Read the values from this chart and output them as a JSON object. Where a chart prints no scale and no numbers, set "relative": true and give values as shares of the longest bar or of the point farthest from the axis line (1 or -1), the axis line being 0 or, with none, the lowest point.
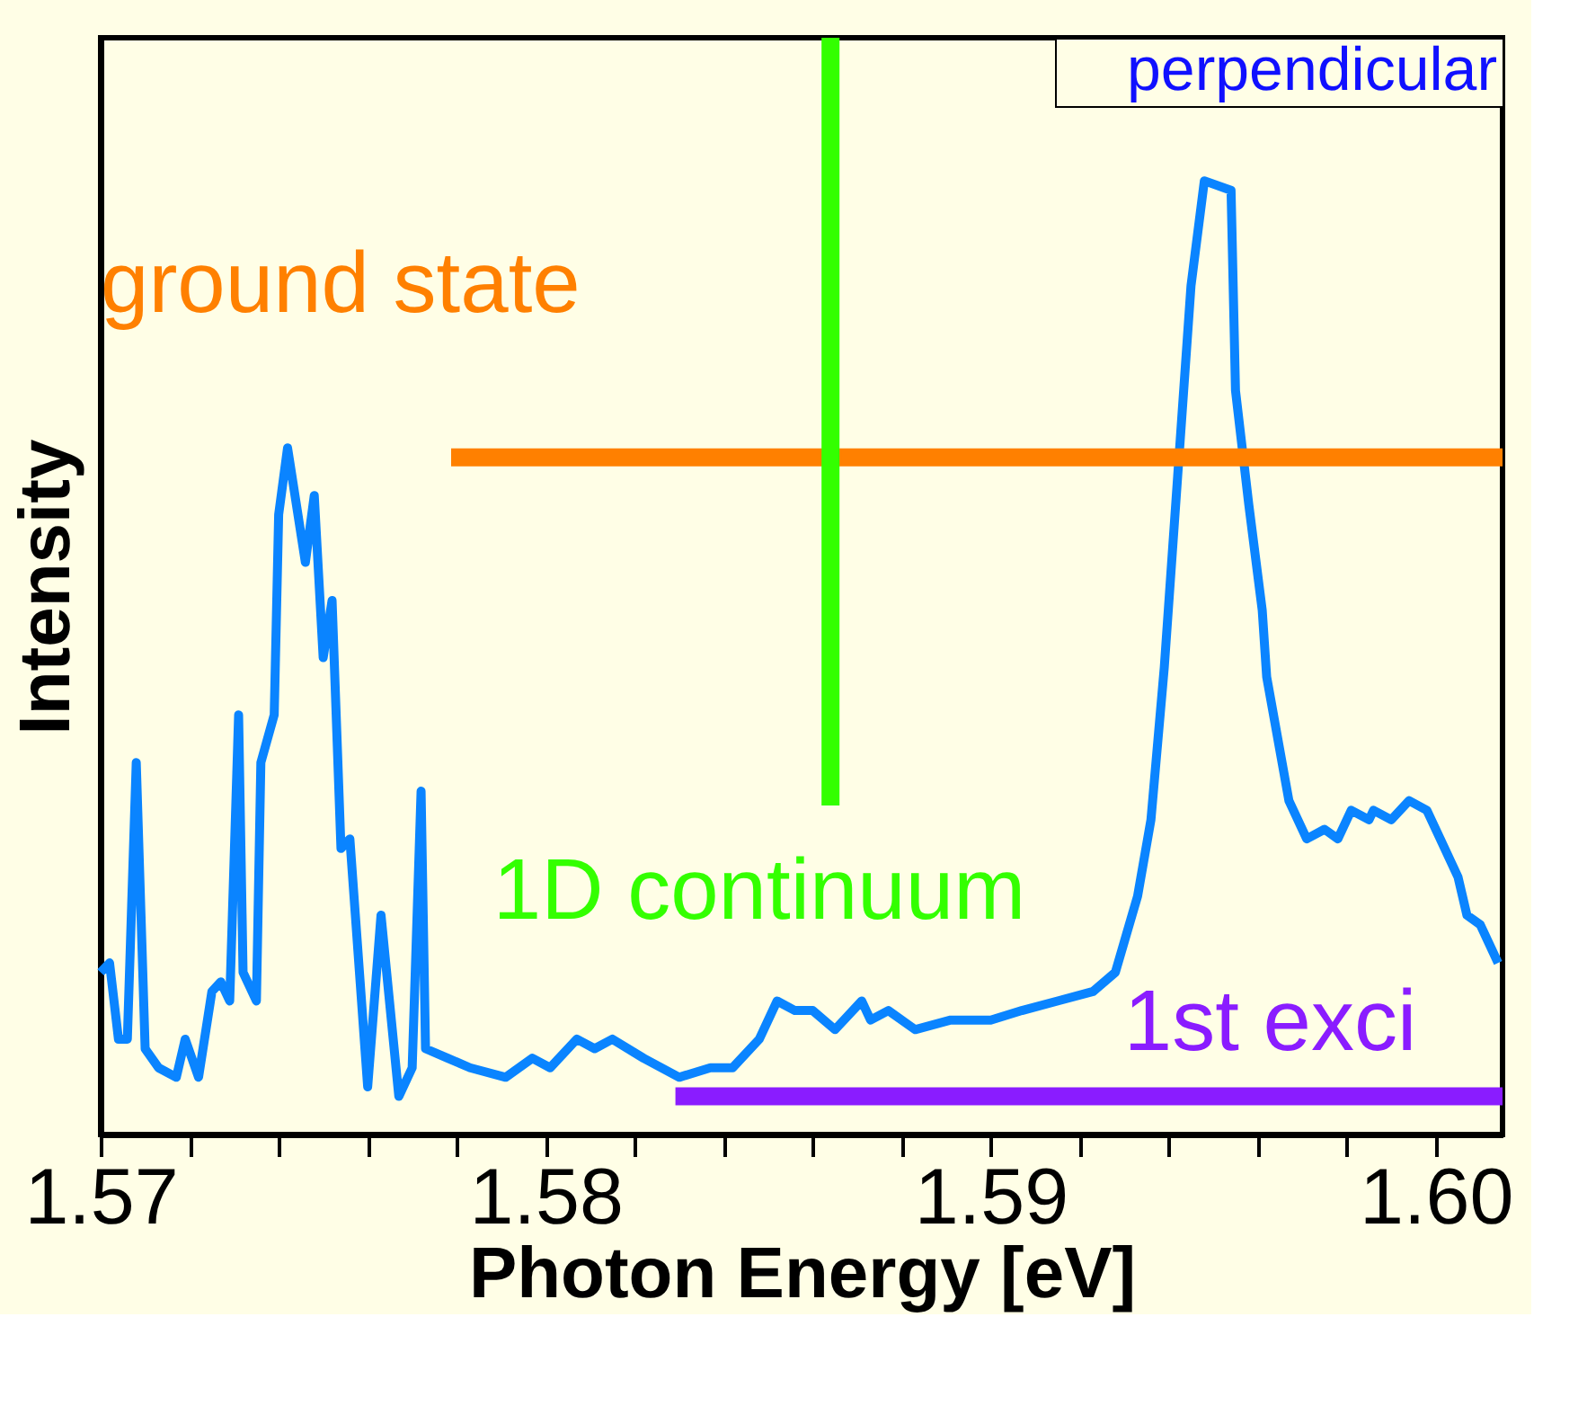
{
  "chart_data": {
    "type": "line",
    "xlabel": "Photon Energy [eV]",
    "ylabel": "Intensity",
    "relative": true,
    "grid": false,
    "legend": "top right",
    "tick_labels": "x",
    "marker": "none",
    "line_style": "solid",
    "xlim": [
      1.57,
      1.6015
    ],
    "xticks": [
      1.57,
      {
        "value": 1.572,
        "label": null
      },
      {
        "value": 1.574,
        "label": null
      },
      {
        "value": 1.576,
        "label": null
      },
      {
        "value": 1.578,
        "label": null
      },
      1.58,
      {
        "value": 1.582,
        "label": null
      },
      {
        "value": 1.584,
        "label": null
      },
      {
        "value": 1.586,
        "label": null
      },
      {
        "value": 1.588,
        "label": null
      },
      1.59,
      {
        "value": 1.592,
        "label": null
      },
      {
        "value": 1.594,
        "label": null
      },
      {
        "value": 1.596,
        "label": null
      },
      {
        "value": 1.598,
        "label": null
      },
      {
        "value": 1.6,
        "label": "1.60"
      }
    ],
    "series": [
      {
        "name": "perpendicular",
        "color": "#0a84ff",
        "x": [
          1.57,
          1.5702,
          1.5704,
          1.5706,
          1.5708,
          1.571,
          1.5713,
          1.5717,
          1.5719,
          1.5722,
          1.5725,
          1.5727,
          1.5729,
          1.5731,
          1.5732,
          1.5735,
          1.5736,
          1.5739,
          1.574,
          1.5742,
          1.5746,
          1.5748,
          1.575,
          1.5752,
          1.5754,
          1.5756,
          1.576,
          1.5763,
          1.5767,
          1.577,
          1.5772,
          1.5773,
          1.5778,
          1.5783,
          1.5791,
          1.5797,
          1.5801,
          1.5807,
          1.5811,
          1.5815,
          1.5822,
          1.583,
          1.5837,
          1.5842,
          1.5848,
          1.5852,
          1.5856,
          1.586,
          1.5865,
          1.5871,
          1.5873,
          1.5877,
          1.5883,
          1.5891,
          1.59,
          1.5907,
          1.5915,
          1.5923,
          1.5928,
          1.5933,
          1.5936,
          1.5939,
          1.5942,
          1.5945,
          1.5948,
          1.5954,
          1.5955,
          1.5958,
          1.5961,
          1.5962,
          1.5967,
          1.5971,
          1.5975,
          1.5978,
          1.5981,
          1.5985,
          1.5986,
          1.599,
          1.5994,
          1.5998,
          1.6001,
          1.6005,
          1.6007,
          1.601,
          1.6014
        ],
        "values": [
          0.17,
          0.18,
          0.1,
          0.1,
          0.39,
          0.09,
          0.07,
          0.06,
          0.1,
          0.06,
          0.15,
          0.16,
          0.14,
          0.44,
          0.17,
          0.14,
          0.39,
          0.44,
          0.65,
          0.72,
          0.6,
          0.67,
          0.5,
          0.56,
          0.3,
          0.31,
          0.05,
          0.23,
          0.04,
          0.07,
          0.36,
          0.09,
          0.08,
          0.07,
          0.06,
          0.08,
          0.07,
          0.1,
          0.09,
          0.1,
          0.08,
          0.06,
          0.07,
          0.07,
          0.1,
          0.14,
          0.13,
          0.13,
          0.11,
          0.14,
          0.12,
          0.13,
          0.11,
          0.12,
          0.12,
          0.13,
          0.14,
          0.15,
          0.17,
          0.25,
          0.33,
          0.49,
          0.69,
          0.89,
          1.0,
          0.99,
          0.78,
          0.66,
          0.55,
          0.48,
          0.35,
          0.31,
          0.32,
          0.31,
          0.34,
          0.33,
          0.34,
          0.33,
          0.35,
          0.34,
          0.31,
          0.27,
          0.23,
          0.22,
          0.18
        ]
      }
    ],
    "ref_lines": [
      {
        "axis": "y",
        "value": 0.71,
        "label": "ground state",
        "color": "#ff8000"
      },
      {
        "axis": "x",
        "value": 1.5864,
        "label": "1D continuum",
        "color": "#33ff00"
      },
      {
        "axis": "y",
        "value": 0.04,
        "label": "1st exci",
        "color": "#8a1cff"
      }
    ]
  }
}
